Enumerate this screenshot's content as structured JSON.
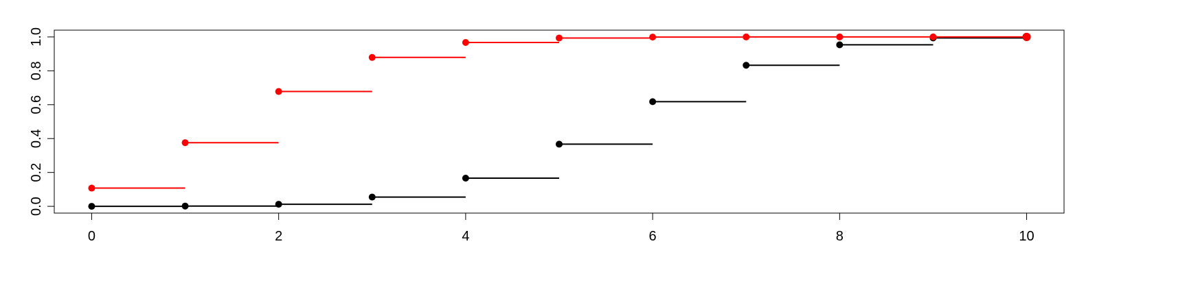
{
  "chart_data": {
    "type": "step",
    "title": "",
    "xlabel": "",
    "ylabel": "",
    "xlim": [
      -0.4,
      10.4
    ],
    "ylim": [
      -0.04,
      1.04
    ],
    "x_ticks": [
      0,
      2,
      4,
      6,
      8,
      10
    ],
    "x_tick_labels": [
      "0",
      "2",
      "4",
      "6",
      "8",
      "10"
    ],
    "y_ticks": [
      0,
      0.2,
      0.4,
      0.6,
      0.8,
      1.0
    ],
    "y_tick_labels": [
      "0.0",
      "0.2",
      "0.4",
      "0.6",
      "0.8",
      "1.0"
    ],
    "grid": false,
    "series": [
      {
        "color": "#000000",
        "x": [
          0,
          1,
          2,
          3,
          4,
          5,
          6,
          7,
          8,
          9,
          10
        ],
        "values": [
          0.0001,
          0.0017,
          0.0123,
          0.0548,
          0.1662,
          0.3669,
          0.6177,
          0.8327,
          0.9536,
          0.994,
          1.0
        ]
      },
      {
        "color": "#ff0000",
        "x": [
          0,
          1,
          2,
          3,
          4,
          5,
          6,
          7,
          8,
          9,
          10
        ],
        "values": [
          0.1074,
          0.3758,
          0.6778,
          0.8791,
          0.9672,
          0.9936,
          0.9991,
          0.9999,
          1.0,
          1.0,
          1.0
        ]
      }
    ]
  }
}
